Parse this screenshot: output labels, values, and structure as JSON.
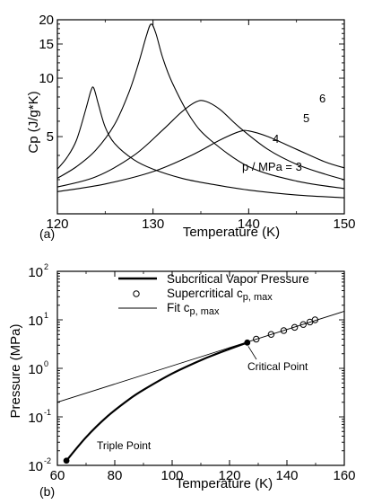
{
  "chart_data": [
    {
      "type": "line",
      "panel_label": "(a)",
      "xlabel": "Temperature (K)",
      "ylabel": "Cp (J/g*K)",
      "xlim": [
        120,
        150
      ],
      "ylim": [
        2,
        20
      ],
      "yscale": "log",
      "xticks": [
        "120",
        "130",
        "140",
        "150"
      ],
      "yticks": [
        {
          "value": 5,
          "label": "5"
        },
        {
          "value": 10,
          "label": "10"
        },
        {
          "value": 15,
          "label": "15"
        },
        {
          "value": 20,
          "label": "20"
        }
      ],
      "grid": false,
      "line_color": "#000000",
      "series": [
        {
          "label": "3",
          "x": [
            120,
            121,
            122,
            123,
            123.5,
            123.8,
            124.3,
            125,
            126,
            128,
            130,
            133,
            136,
            140,
            145,
            150
          ],
          "y": [
            3.4,
            3.9,
            4.8,
            7.0,
            8.6,
            8.9,
            7.3,
            5.6,
            4.6,
            3.8,
            3.4,
            3.05,
            2.85,
            2.65,
            2.5,
            2.42
          ]
        },
        {
          "label": "4",
          "x": [
            120,
            122,
            124,
            126,
            127.5,
            128.5,
            129.3,
            129.8,
            130.3,
            131,
            132,
            134,
            136,
            140,
            145,
            150
          ],
          "y": [
            3.05,
            3.5,
            4.25,
            5.8,
            8.5,
            12.0,
            16.5,
            19.0,
            17.0,
            12.8,
            9.5,
            6.2,
            4.8,
            3.5,
            2.95,
            2.7
          ]
        },
        {
          "label": "5",
          "x": [
            120,
            124,
            128,
            131,
            133,
            134.5,
            135.5,
            137,
            139,
            142,
            145,
            148,
            150
          ],
          "y": [
            2.75,
            3.1,
            4.0,
            5.4,
            6.7,
            7.55,
            7.6,
            6.9,
            5.6,
            4.3,
            3.6,
            3.2,
            3.0
          ]
        },
        {
          "label": "6",
          "x": [
            120,
            125,
            130,
            134,
            137,
            139,
            140,
            142,
            145,
            148,
            150
          ],
          "y": [
            2.6,
            2.85,
            3.3,
            4.0,
            4.8,
            5.3,
            5.35,
            5.0,
            4.3,
            3.7,
            3.45
          ]
        }
      ],
      "annotations": {
        "series_prefix": "p / MPa = "
      }
    },
    {
      "type": "line",
      "panel_label": "(b)",
      "xlabel": "Temperature (K)",
      "ylabel": "Pressure (MPa)",
      "xlim": [
        60,
        160
      ],
      "ylim": [
        0.01,
        100
      ],
      "yscale": "log",
      "xticks": [
        "60",
        "80",
        "100",
        "120",
        "140",
        "160"
      ],
      "yticks": [
        {
          "value": 0.01,
          "base": "10",
          "exp": "-2"
        },
        {
          "value": 0.1,
          "base": "10",
          "exp": "-1"
        },
        {
          "value": 1,
          "base": "10",
          "exp": "0"
        },
        {
          "value": 10,
          "base": "10",
          "exp": "1"
        },
        {
          "value": 100,
          "base": "10",
          "exp": "2"
        }
      ],
      "grid": false,
      "legend": {
        "placement": "top-right",
        "entries": [
          {
            "label": "Subcritical Vapor Pressure",
            "style": "thick-line"
          },
          {
            "label_main": "Supercritical c",
            "label_sub": "p, max",
            "style": "open-circle"
          },
          {
            "label_main": "Fit c",
            "label_sub": "p, max",
            "style": "thin-line"
          }
        ]
      },
      "series": [
        {
          "name": "Subcritical Vapor Pressure",
          "style": "thick-line",
          "x": [
            63.15,
            70,
            77.35,
            85,
            90,
            100,
            110,
            115,
            120,
            126.19
          ],
          "y": [
            0.0125,
            0.038,
            0.1013,
            0.23,
            0.36,
            0.78,
            1.47,
            1.94,
            2.51,
            3.396
          ]
        },
        {
          "name": "Supercritical c_p,max",
          "style": "open-circle",
          "x": [
            129.3,
            134.5,
            138.9,
            142.7,
            145.7,
            148.0,
            149.8
          ],
          "y": [
            4.0,
            5.0,
            6.0,
            7.0,
            8.0,
            9.0,
            10.0
          ]
        },
        {
          "name": "Fit c_p,max",
          "style": "thin-line",
          "x": [
            60,
            160
          ],
          "y": [
            0.2,
            15.0
          ]
        }
      ],
      "annotations": {
        "critical_point": {
          "label": "Critical Point",
          "x": 126.19,
          "y": 3.396
        },
        "triple_point": {
          "label": "Triple Point",
          "x": 63.15,
          "y": 0.0125
        }
      }
    }
  ]
}
